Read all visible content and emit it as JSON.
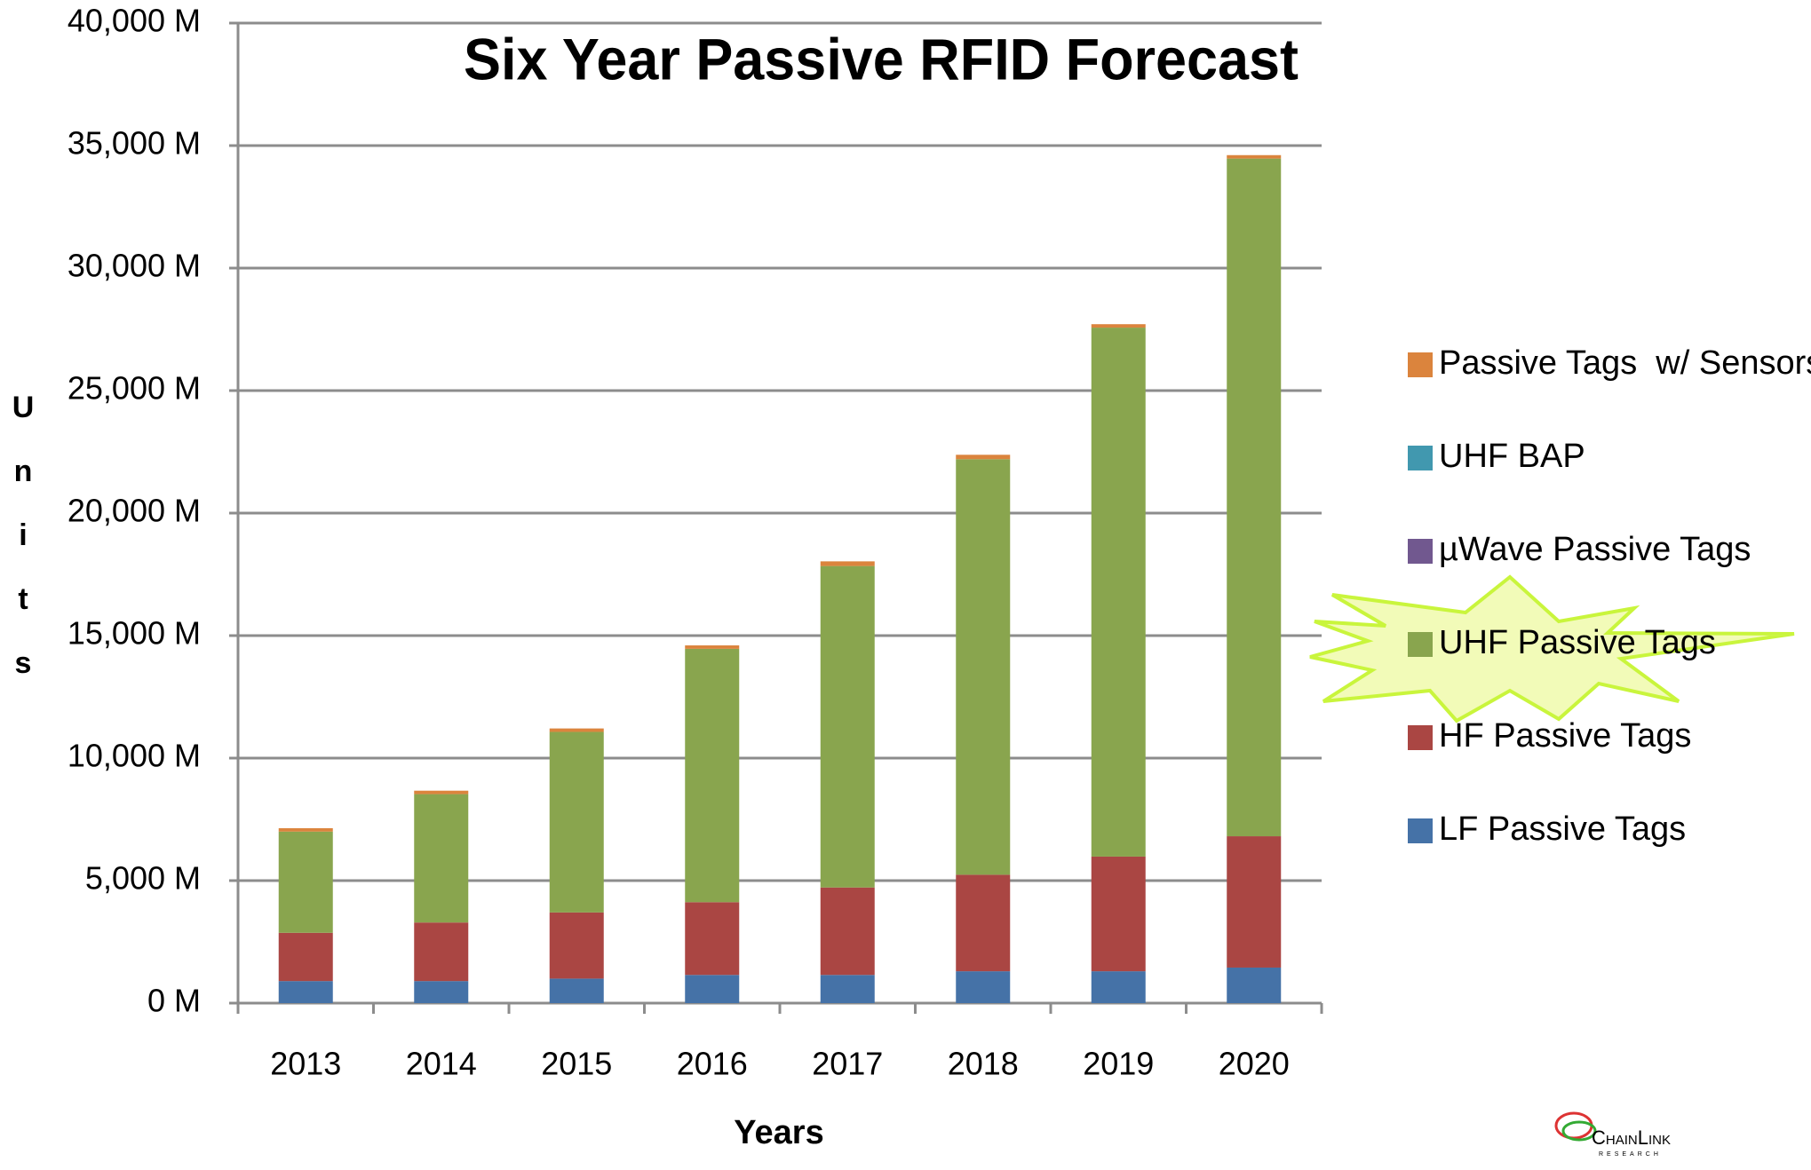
{
  "chart_data": {
    "type": "stacked_bar",
    "title": "Six Year Passive RFID Forecast",
    "x_label": "Years",
    "y_label": "Units",
    "logo_text": "ChainLink",
    "logo_subtext": "RESEARCH",
    "categories": [
      "2013",
      "2014",
      "2015",
      "2016",
      "2017",
      "2018",
      "2019",
      "2020"
    ],
    "series": [
      {
        "name": "LF Passive Tags",
        "color": "#4572a7",
        "values": [
          900,
          900,
          1000,
          1150,
          1150,
          1300,
          1300,
          1450
        ]
      },
      {
        "name": "HF Passive Tags",
        "color": "#aa4643",
        "values": [
          1970,
          2390,
          2700,
          2970,
          3570,
          3940,
          4680,
          5360
        ]
      },
      {
        "name": "UHF Passive Tags",
        "color": "#89a54e",
        "values": [
          4130,
          5240,
          7370,
          10340,
          13120,
          16960,
          21590,
          27660
        ]
      },
      {
        "name": "µWave Passive Tags",
        "color": "#71588f",
        "values": [
          0,
          0,
          0,
          0,
          0,
          0,
          0,
          0
        ]
      },
      {
        "name": "UHF BAP",
        "color": "#4198af",
        "values": [
          0,
          0,
          0,
          0,
          0,
          0,
          0,
          0
        ]
      },
      {
        "name": "Passive Tags  w/ Sensors",
        "color": "#db843d",
        "values": [
          140,
          140,
          140,
          140,
          190,
          180,
          140,
          140
        ]
      }
    ],
    "ylim": [
      0,
      40000
    ],
    "yticks": [
      {
        "value": 0,
        "label": "0 M"
      },
      {
        "value": 5000,
        "label": "5,000 M"
      },
      {
        "value": 10000,
        "label": "10,000 M"
      },
      {
        "value": 15000,
        "label": "15,000 M"
      },
      {
        "value": 20000,
        "label": "20,000 M"
      },
      {
        "value": 25000,
        "label": "25,000 M"
      },
      {
        "value": 30000,
        "label": "30,000 M"
      },
      {
        "value": 35000,
        "label": "35,000 M"
      },
      {
        "value": 40000,
        "label": "40,000 M"
      }
    ],
    "grid": true
  }
}
